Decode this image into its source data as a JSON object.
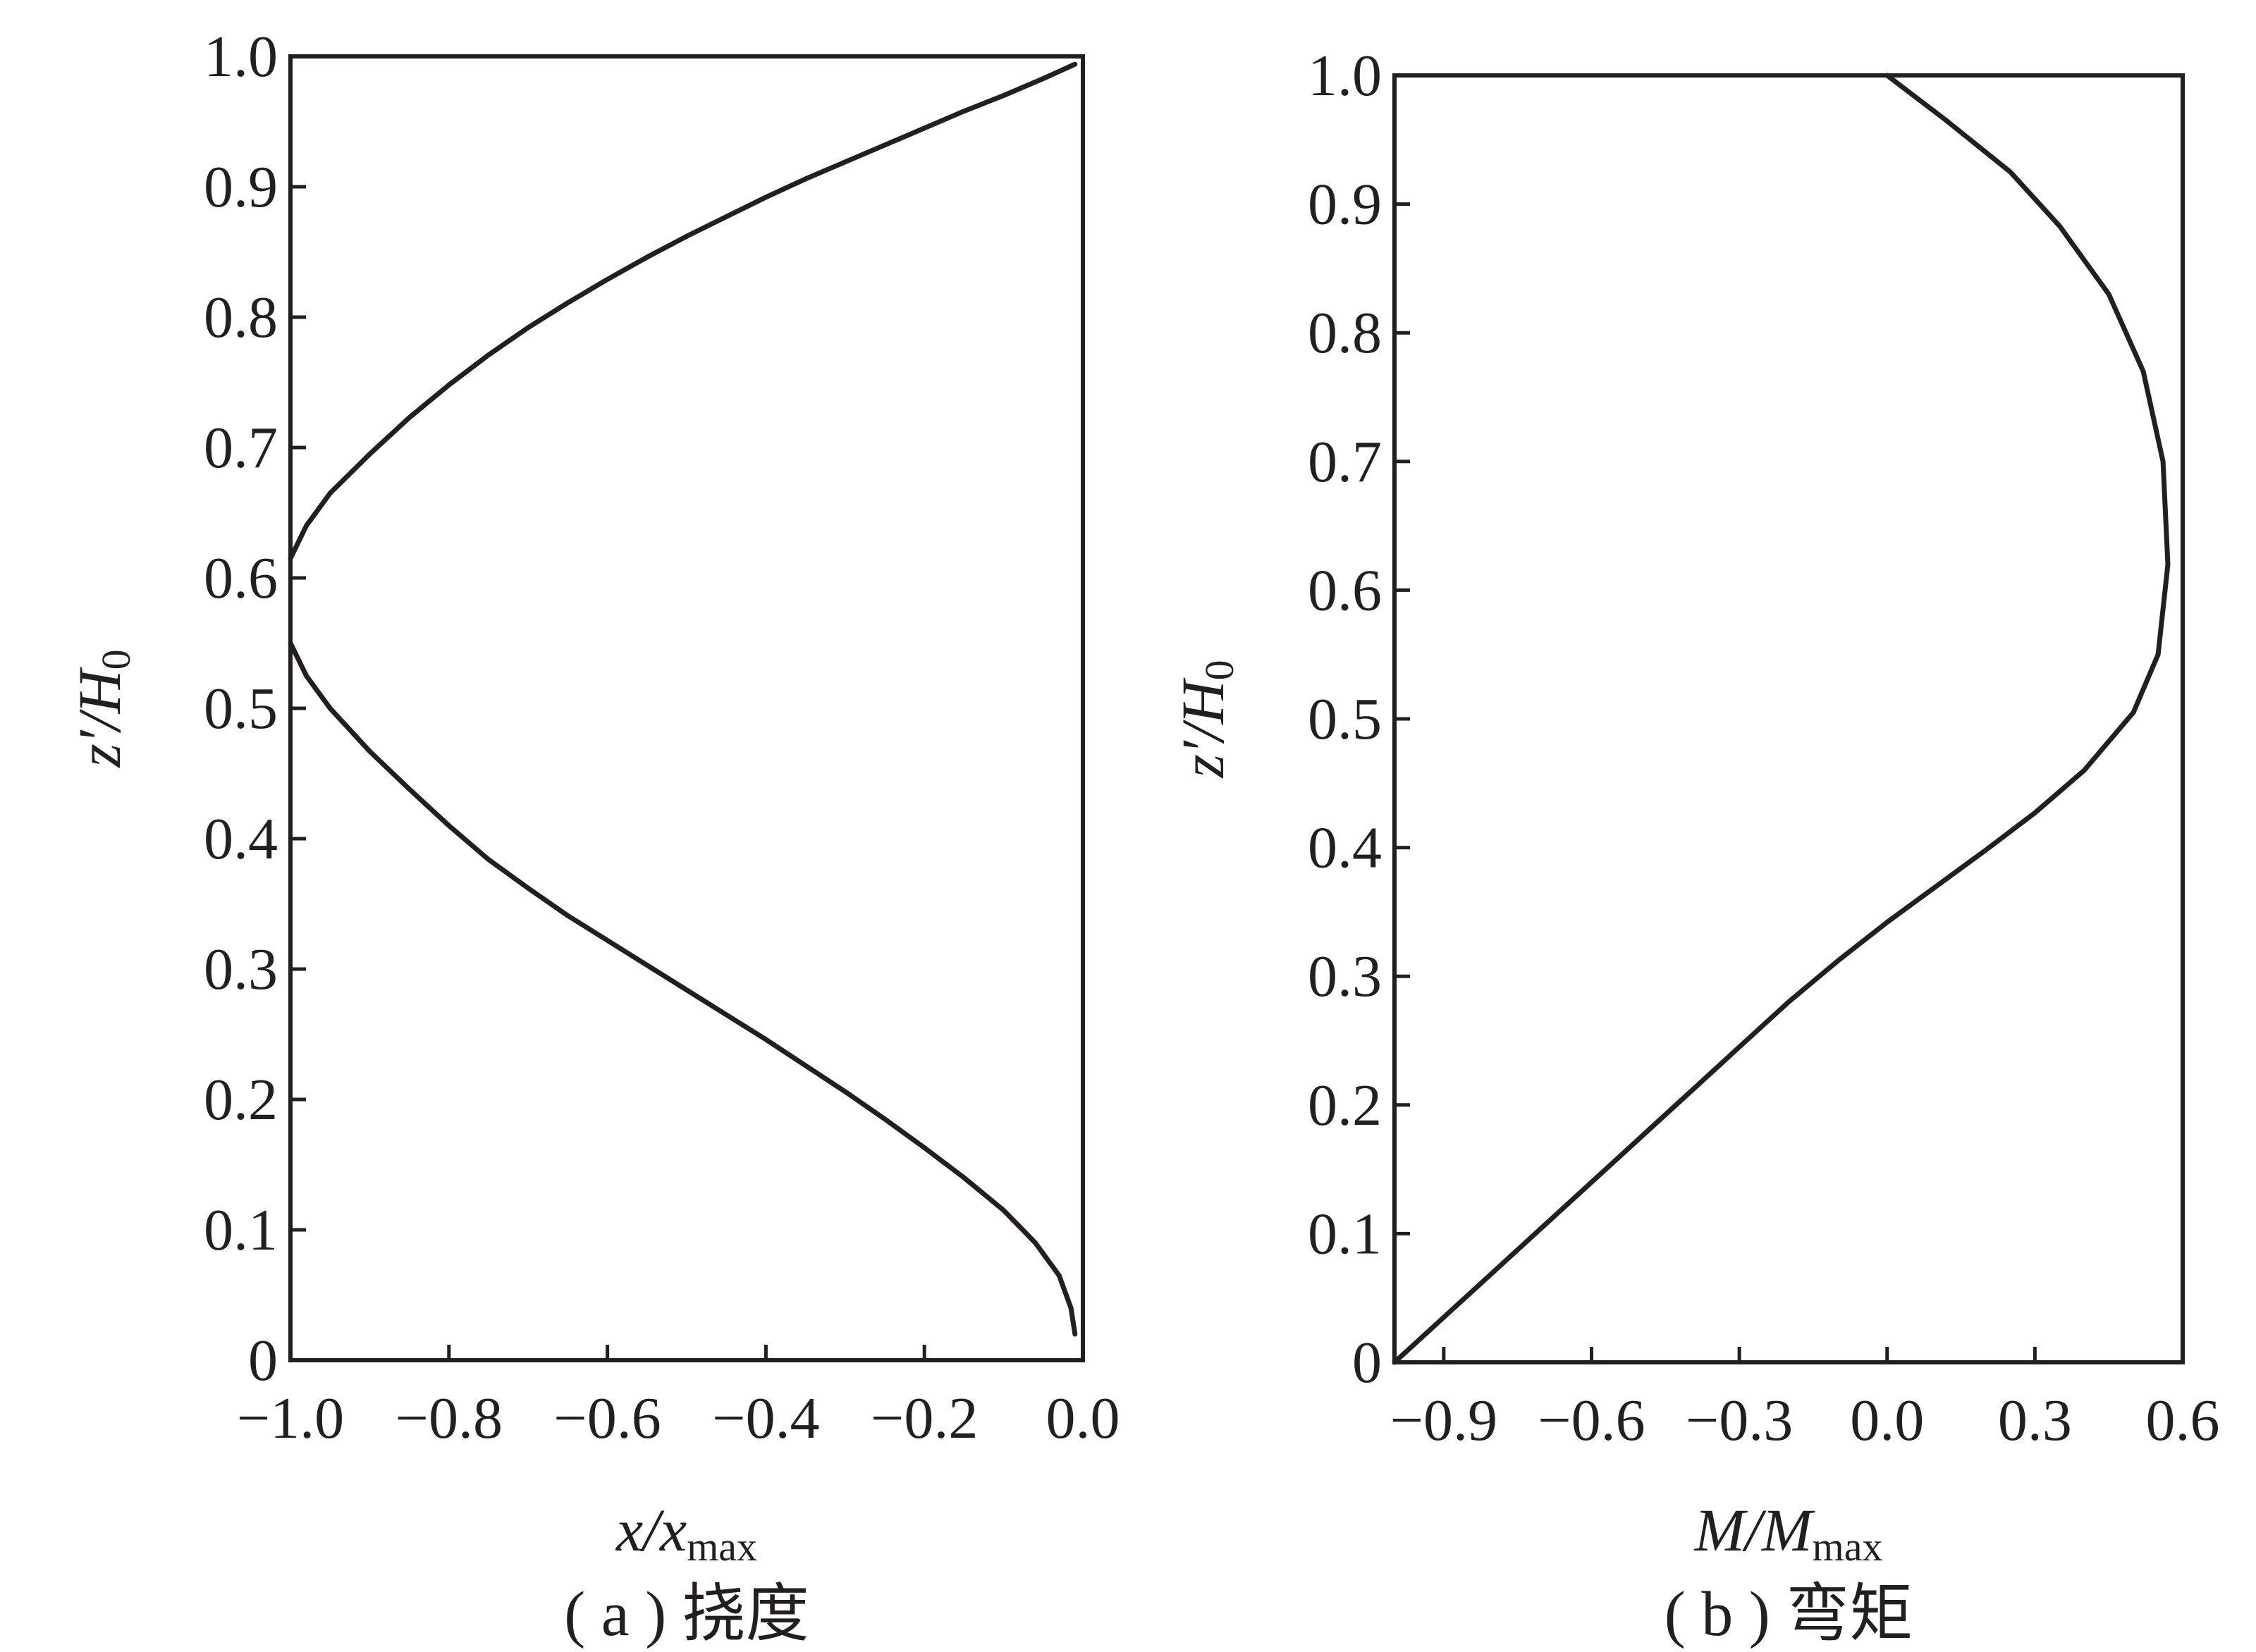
{
  "chart_data": [
    {
      "id": "a",
      "type": "line",
      "xlabel": {
        "main": "x/x",
        "sub": "max"
      },
      "ylabel": {
        "main": "z′/H",
        "sub": "0"
      },
      "xlim": [
        -1.0,
        0.0
      ],
      "ylim": [
        0,
        1.0
      ],
      "xticks": [
        -1.0,
        -0.8,
        -0.6,
        -0.4,
        -0.2,
        0.0
      ],
      "xtick_labels": [
        "−1.0",
        "−0.8",
        "−0.6",
        "−0.4",
        "−0.2",
        "0.0"
      ],
      "yticks": [
        0,
        0.1,
        0.2,
        0.3,
        0.4,
        0.5,
        0.6,
        0.7,
        0.8,
        0.9,
        1.0
      ],
      "ytick_labels": [
        "0",
        "0.1",
        "0.2",
        "0.3",
        "0.4",
        "0.5",
        "0.6",
        "0.7",
        "0.8",
        "0.9",
        "1.0"
      ],
      "caption": "( a ) 挠度",
      "series": [
        {
          "x": [
            -0.01,
            -0.015,
            -0.03,
            -0.06,
            -0.1,
            -0.15,
            -0.2,
            -0.25,
            -0.3,
            -0.35,
            -0.4,
            -0.45,
            -0.5,
            -0.55,
            -0.6,
            -0.65,
            -0.7,
            -0.75,
            -0.8,
            -0.85,
            -0.9,
            -0.95,
            -0.98,
            -1.0
          ],
          "y": [
            0.02,
            0.04,
            0.065,
            0.09,
            0.115,
            0.14,
            0.163,
            0.185,
            0.206,
            0.226,
            0.246,
            0.265,
            0.284,
            0.303,
            0.322,
            0.341,
            0.362,
            0.384,
            0.41,
            0.438,
            0.467,
            0.5,
            0.525,
            0.55
          ]
        },
        {
          "x": [
            -1.0,
            -0.98,
            -0.95,
            -0.9,
            -0.85,
            -0.8,
            -0.75,
            -0.7,
            -0.65,
            -0.6,
            -0.55,
            -0.5,
            -0.45,
            -0.4,
            -0.35,
            -0.3,
            -0.25,
            -0.2,
            -0.15,
            -0.1,
            -0.05,
            -0.01
          ],
          "y": [
            0.615,
            0.64,
            0.665,
            0.695,
            0.723,
            0.748,
            0.771,
            0.792,
            0.811,
            0.829,
            0.846,
            0.862,
            0.877,
            0.892,
            0.906,
            0.919,
            0.932,
            0.945,
            0.958,
            0.97,
            0.983,
            0.994
          ]
        }
      ]
    },
    {
      "id": "b",
      "type": "line",
      "xlabel": {
        "main": "M/M",
        "sub": "max"
      },
      "ylabel": {
        "main": "z′/H",
        "sub": "0"
      },
      "xlim": [
        -1.0,
        0.6
      ],
      "ylim": [
        0,
        1.0
      ],
      "xticks": [
        -0.9,
        -0.6,
        -0.3,
        0.0,
        0.3,
        0.6
      ],
      "xtick_labels": [
        "−0.9",
        "−0.6",
        "−0.3",
        "0.0",
        "0.3",
        "0.6"
      ],
      "yticks": [
        0,
        0.1,
        0.2,
        0.3,
        0.4,
        0.5,
        0.6,
        0.7,
        0.8,
        0.9,
        1.0
      ],
      "ytick_labels": [
        "0",
        "0.1",
        "0.2",
        "0.3",
        "0.4",
        "0.5",
        "0.6",
        "0.7",
        "0.8",
        "0.9",
        "1.0"
      ],
      "caption": "( b ) 弯矩",
      "series": [
        {
          "x": [
            -1.0,
            -0.9,
            -0.8,
            -0.7,
            -0.6,
            -0.5,
            -0.4,
            -0.3,
            -0.2,
            -0.1,
            0.0,
            0.1,
            0.2,
            0.3,
            0.4,
            0.5,
            0.55,
            0.57,
            0.56,
            0.52,
            0.45,
            0.35,
            0.25,
            0.12,
            0.0
          ],
          "y": [
            0.0,
            0.035,
            0.07,
            0.105,
            0.14,
            0.175,
            0.21,
            0.245,
            0.28,
            0.312,
            0.342,
            0.37,
            0.398,
            0.427,
            0.46,
            0.505,
            0.55,
            0.62,
            0.7,
            0.77,
            0.83,
            0.883,
            0.925,
            0.965,
            1.0
          ]
        }
      ]
    }
  ]
}
